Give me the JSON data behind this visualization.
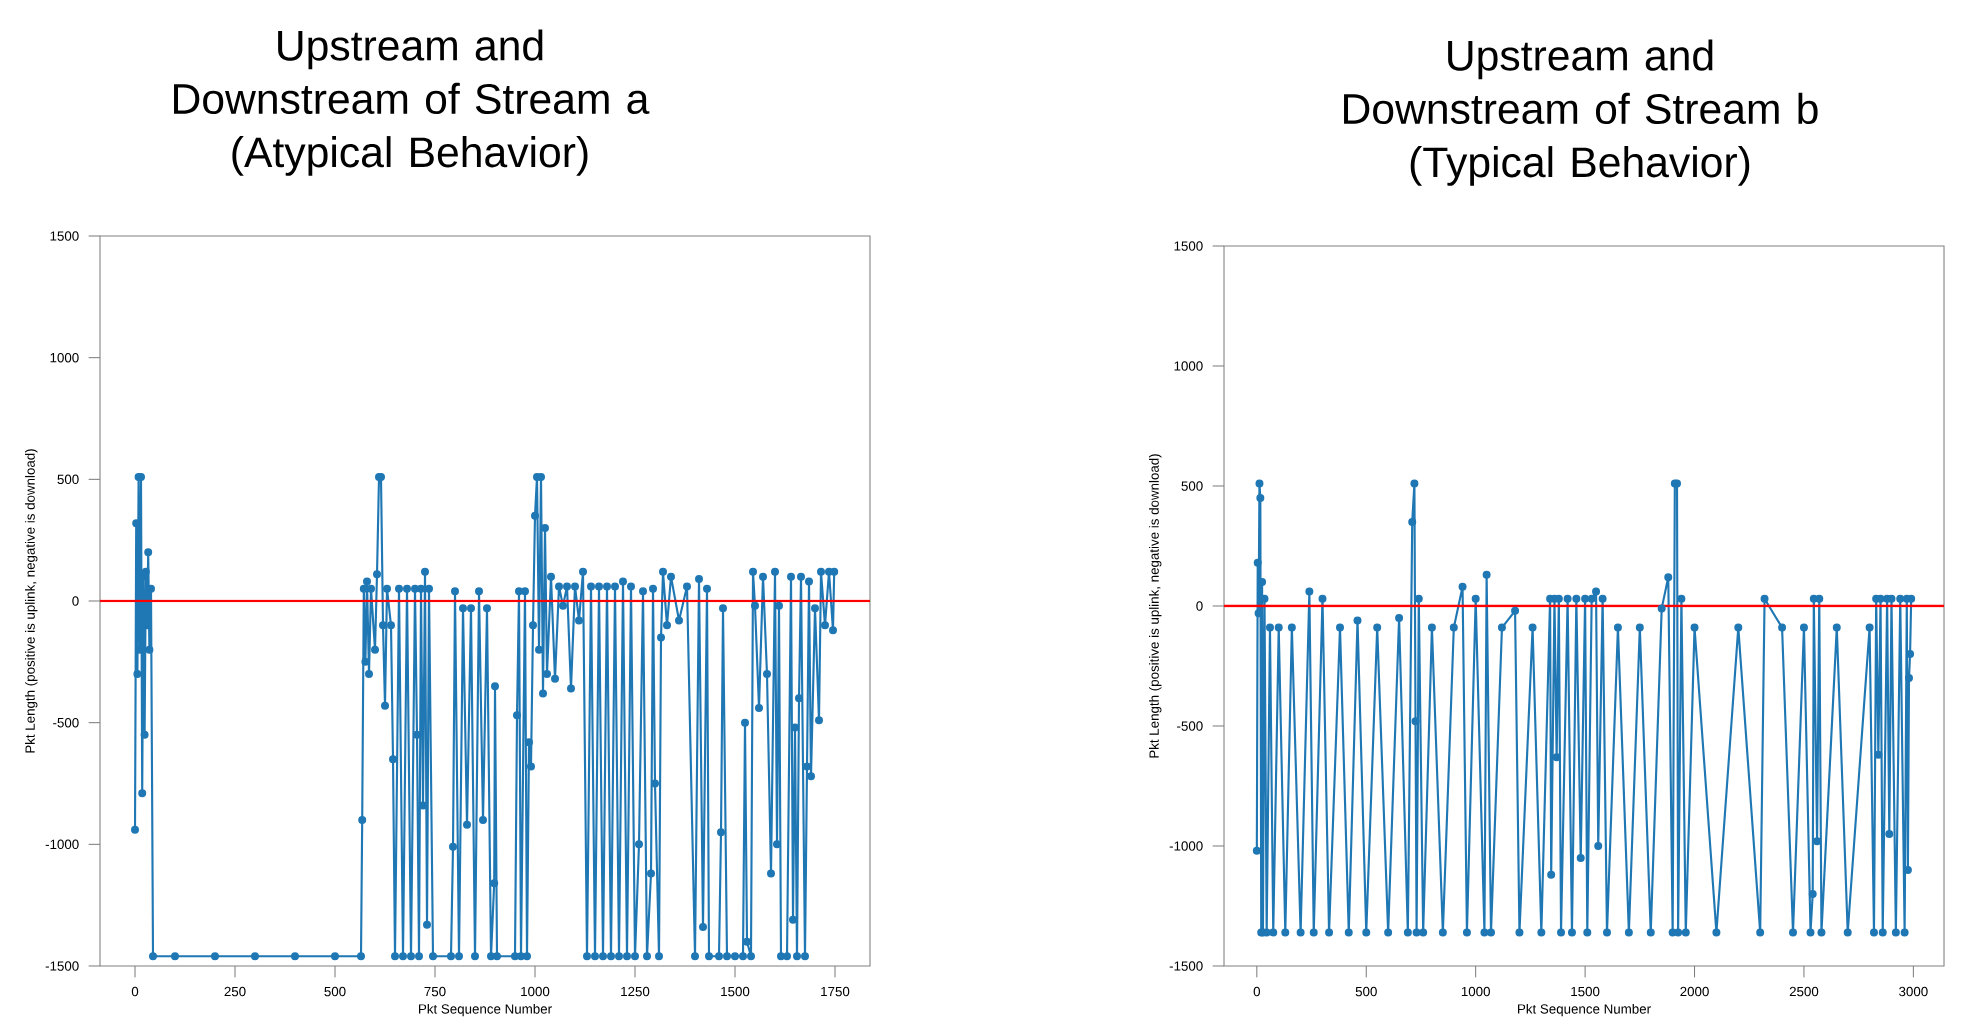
{
  "chart_data": [
    {
      "type": "line",
      "title": "Upstream and Downstream of Stream a",
      "subtitle": "(Atypical Behavior)",
      "xlabel": "Pkt Sequence Number",
      "ylabel": "Pkt Length (positive is uplink, negative is download)",
      "xlim": [
        -87.5,
        1837.5
      ],
      "xticks": [
        0,
        250,
        500,
        750,
        1000,
        1250,
        1500,
        1750
      ],
      "ylim": [
        -1500,
        1500
      ],
      "yticks": [
        -1500,
        -1000,
        -500,
        0,
        500,
        1000,
        1500
      ],
      "grid": false,
      "marker": "circle",
      "line_style": "solid",
      "ref_lines": [
        {
          "axis": "y",
          "value": 0,
          "color": "#ff0000"
        }
      ],
      "series": [
        {
          "color": "#1f77b4",
          "x": [
            0,
            3,
            6,
            9,
            12,
            15,
            18,
            21,
            24,
            27,
            30,
            33,
            36,
            40,
            45,
            100,
            200,
            300,
            400,
            500,
            565,
            568,
            572,
            576,
            580,
            585,
            590,
            600,
            605,
            610,
            615,
            620,
            625,
            630,
            640,
            645,
            650,
            660,
            670,
            680,
            690,
            700,
            705,
            710,
            715,
            720,
            725,
            730,
            735,
            745,
            790,
            795,
            800,
            810,
            820,
            830,
            840,
            850,
            860,
            870,
            880,
            890,
            898,
            900,
            905,
            950,
            955,
            960,
            965,
            975,
            980,
            985,
            990,
            995,
            1000,
            1005,
            1010,
            1015,
            1020,
            1025,
            1030,
            1040,
            1050,
            1060,
            1070,
            1080,
            1090,
            1100,
            1110,
            1120,
            1130,
            1140,
            1150,
            1160,
            1170,
            1180,
            1190,
            1200,
            1210,
            1220,
            1230,
            1240,
            1250,
            1260,
            1270,
            1280,
            1290,
            1295,
            1300,
            1310,
            1315,
            1320,
            1330,
            1340,
            1360,
            1380,
            1400,
            1410,
            1420,
            1430,
            1435,
            1460,
            1465,
            1470,
            1480,
            1500,
            1520,
            1525,
            1530,
            1540,
            1545,
            1550,
            1560,
            1570,
            1580,
            1590,
            1600,
            1605,
            1610,
            1615,
            1630,
            1640,
            1645,
            1650,
            1655,
            1660,
            1665,
            1675,
            1680,
            1685,
            1690,
            1700,
            1710,
            1715,
            1725,
            1735,
            1745,
            1748
          ],
          "values": [
            -940,
            320,
            -300,
            510,
            -200,
            510,
            -790,
            100,
            -550,
            120,
            -100,
            200,
            -200,
            50,
            -1460,
            -1460,
            -1460,
            -1460,
            -1460,
            -1460,
            -1460,
            -900,
            50,
            -250,
            80,
            -300,
            50,
            -200,
            110,
            510,
            510,
            -100,
            -430,
            50,
            -100,
            -650,
            -1460,
            50,
            -1460,
            50,
            -1460,
            50,
            -550,
            -1460,
            50,
            -840,
            120,
            -1330,
            50,
            -1460,
            -1460,
            -1010,
            40,
            -1460,
            -30,
            -920,
            -30,
            -1460,
            40,
            -900,
            -30,
            -1460,
            -1160,
            -350,
            -1460,
            -1460,
            -470,
            40,
            -1460,
            40,
            -1460,
            -580,
            -680,
            -100,
            350,
            510,
            -200,
            510,
            -380,
            300,
            -300,
            100,
            -320,
            60,
            -20,
            60,
            -360,
            60,
            -80,
            120,
            -1460,
            60,
            -1460,
            60,
            -1460,
            60,
            -1460,
            60,
            -1460,
            80,
            -1460,
            60,
            -1460,
            -1000,
            40,
            -1460,
            -1120,
            50,
            -750,
            -1460,
            -150,
            120,
            -100,
            100,
            -80,
            60,
            -1460,
            90,
            -1340,
            50,
            -1460,
            -1460,
            -950,
            -30,
            -1460,
            -1460,
            -1460,
            -500,
            -1400,
            -1460,
            120,
            -20,
            -440,
            100,
            -300,
            -1120,
            120,
            -1000,
            -20,
            -1460,
            -1460,
            100,
            -1310,
            -520,
            -1460,
            -400,
            100,
            -1460,
            -680,
            80,
            -720,
            -30,
            -490,
            120,
            -100,
            120,
            -120,
            120
          ]
        }
      ]
    },
    {
      "type": "line",
      "title": "Upstream and Downstream of Stream b",
      "subtitle": "(Typical Behavior)",
      "xlabel": "Pkt Sequence Number",
      "ylabel": "Pkt Length (positive is uplink, negative is download)",
      "xlim": [
        -150,
        3140
      ],
      "xticks": [
        0,
        500,
        1000,
        1500,
        2000,
        2500,
        3000
      ],
      "ylim": [
        -1500,
        1500
      ],
      "yticks": [
        -1500,
        -1000,
        -500,
        0,
        500,
        1000,
        1500
      ],
      "grid": false,
      "marker": "circle",
      "line_style": "solid",
      "ref_lines": [
        {
          "axis": "y",
          "value": 0,
          "color": "#ff0000"
        }
      ],
      "series": [
        {
          "color": "#1f77b4",
          "x": [
            0,
            4,
            8,
            12,
            16,
            20,
            24,
            28,
            35,
            45,
            60,
            75,
            100,
            130,
            160,
            200,
            240,
            260,
            300,
            330,
            380,
            420,
            460,
            500,
            550,
            600,
            650,
            690,
            710,
            720,
            725,
            730,
            740,
            760,
            800,
            850,
            900,
            940,
            960,
            1000,
            1040,
            1050,
            1070,
            1120,
            1180,
            1200,
            1260,
            1300,
            1340,
            1345,
            1360,
            1370,
            1380,
            1390,
            1420,
            1440,
            1460,
            1480,
            1500,
            1510,
            1530,
            1550,
            1560,
            1580,
            1600,
            1650,
            1700,
            1750,
            1800,
            1850,
            1880,
            1900,
            1910,
            1920,
            1925,
            1940,
            1960,
            2000,
            2100,
            2200,
            2300,
            2320,
            2400,
            2450,
            2500,
            2530,
            2540,
            2545,
            2560,
            2570,
            2580,
            2650,
            2700,
            2800,
            2820,
            2830,
            2840,
            2850,
            2860,
            2880,
            2890,
            2900,
            2920,
            2940,
            2960,
            2970,
            2975,
            2980,
            2985,
            2990
          ],
          "values": [
            -1020,
            180,
            -30,
            510,
            450,
            -1360,
            100,
            -1360,
            30,
            -1360,
            -90,
            -1360,
            -90,
            -1360,
            -90,
            -1360,
            60,
            -1360,
            30,
            -1360,
            -90,
            -1360,
            -60,
            -1360,
            -90,
            -1360,
            -50,
            -1360,
            350,
            510,
            -480,
            -1360,
            30,
            -1360,
            -90,
            -1360,
            -90,
            80,
            -1360,
            30,
            -1360,
            130,
            -1360,
            -90,
            -20,
            -1360,
            -90,
            -1360,
            30,
            -1120,
            30,
            -630,
            30,
            -1360,
            30,
            -1360,
            30,
            -1050,
            30,
            -1360,
            30,
            60,
            -1000,
            30,
            -1360,
            -90,
            -1360,
            -90,
            -1360,
            -10,
            120,
            -1360,
            510,
            510,
            -1360,
            30,
            -1360,
            -90,
            -1360,
            -90,
            -1360,
            30,
            -90,
            -1360,
            -90,
            -1360,
            -1200,
            30,
            -980,
            30,
            -1360,
            -90,
            -1360,
            -90,
            -1360,
            30,
            -620,
            30,
            -1360,
            30,
            -950,
            30,
            -1360,
            30,
            -1360,
            30,
            -1100,
            -300,
            -200,
            30
          ]
        }
      ]
    }
  ]
}
